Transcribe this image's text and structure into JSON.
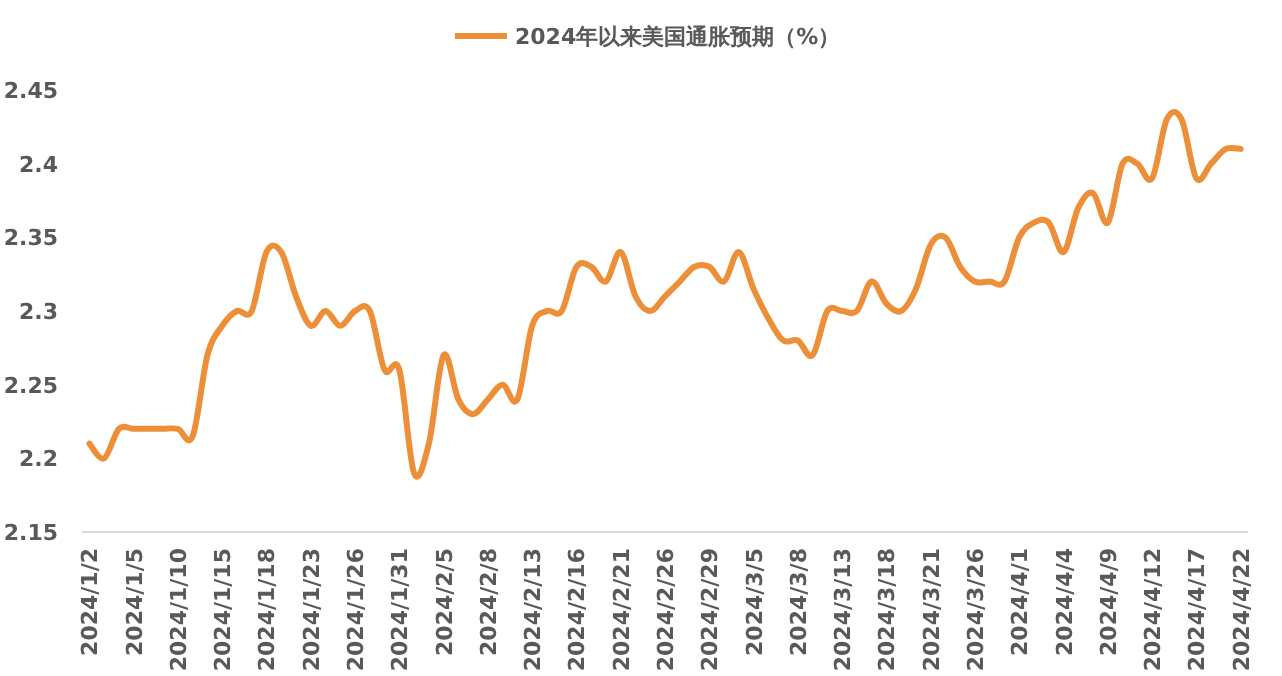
{
  "chart_data": {
    "type": "line",
    "legend": "top",
    "grid": false,
    "marker": "none",
    "line_style": "solid",
    "categories": [
      "2024/1/2",
      null,
      null,
      "2024/1/5",
      null,
      null,
      "2024/1/10",
      null,
      null,
      "2024/1/15",
      null,
      null,
      "2024/1/18",
      null,
      null,
      "2024/1/23",
      null,
      null,
      "2024/1/26",
      null,
      null,
      "2024/1/31",
      null,
      null,
      "2024/2/5",
      null,
      null,
      "2024/2/8",
      null,
      null,
      "2024/2/13",
      null,
      null,
      "2024/2/16",
      null,
      null,
      "2024/2/21",
      null,
      null,
      "2024/2/26",
      null,
      null,
      "2024/2/29",
      null,
      null,
      "2024/3/5",
      null,
      null,
      "2024/3/8",
      null,
      null,
      "2024/3/13",
      null,
      null,
      "2024/3/18",
      null,
      null,
      "2024/3/21",
      null,
      null,
      "2024/3/26",
      null,
      null,
      "2024/4/1",
      null,
      null,
      "2024/4/4",
      null,
      null,
      "2024/4/9",
      null,
      null,
      "2024/4/12",
      null,
      null,
      "2024/4/17",
      null,
      null,
      "2024/4/22"
    ],
    "ylim": [
      2.15,
      2.45
    ],
    "yticks": [
      2.15,
      2.2,
      2.25,
      2.3,
      2.35,
      2.4,
      2.45
    ],
    "series": [
      {
        "name": "2024年以来美国通胀预期（%）",
        "color": "#ed8f38",
        "values": [
          2.21,
          2.2,
          2.22,
          2.22,
          2.22,
          2.22,
          2.22,
          2.215,
          2.27,
          2.29,
          2.3,
          2.3,
          2.34,
          2.34,
          2.31,
          2.29,
          2.3,
          2.29,
          2.3,
          2.3,
          2.26,
          2.26,
          2.19,
          2.21,
          2.27,
          2.24,
          2.23,
          2.24,
          2.25,
          2.24,
          2.29,
          2.3,
          2.3,
          2.33,
          2.33,
          2.32,
          2.34,
          2.31,
          2.3,
          2.31,
          2.32,
          2.33,
          2.33,
          2.32,
          2.34,
          2.315,
          2.295,
          2.28,
          2.28,
          2.27,
          2.3,
          2.3,
          2.3,
          2.32,
          2.305,
          2.3,
          2.315,
          2.345,
          2.35,
          2.33,
          2.32,
          2.32,
          2.32,
          2.35,
          2.36,
          2.36,
          2.34,
          2.37,
          2.38,
          2.36,
          2.4,
          2.4,
          2.39,
          2.43,
          2.43,
          2.39,
          2.4,
          2.41,
          2.41
        ]
      }
    ]
  }
}
